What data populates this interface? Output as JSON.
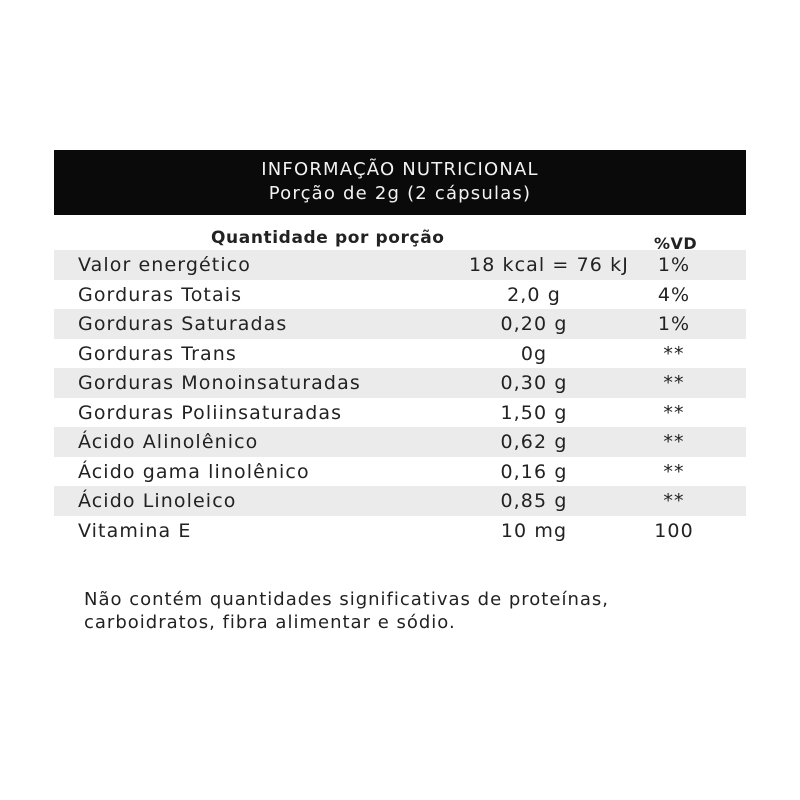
{
  "header": {
    "title": "INFORMAÇÃO NUTRICIONAL",
    "subtitle": "Porção de 2g (2 cápsulas)"
  },
  "columns": {
    "quantity": "Quantidade por porção",
    "dv": "%VD"
  },
  "rows": [
    {
      "name": "Valor energético",
      "amount": "18 kcal = 76 kJ",
      "dv": "1%"
    },
    {
      "name": "Gorduras Totais",
      "amount": "2,0 g",
      "dv": "4%"
    },
    {
      "name": "Gorduras Saturadas",
      "amount": "0,20 g",
      "dv": "1%"
    },
    {
      "name": "Gorduras Trans",
      "amount": "0g",
      "dv": "**"
    },
    {
      "name": "Gorduras Monoinsaturadas",
      "amount": "0,30 g",
      "dv": "**"
    },
    {
      "name": "Gorduras Poliinsaturadas",
      "amount": "1,50 g",
      "dv": "**"
    },
    {
      "name": "Ácido Alinolênico",
      "amount": "0,62 g",
      "dv": "**"
    },
    {
      "name": "Ácido gama linolênico",
      "amount": "0,16 g",
      "dv": "**"
    },
    {
      "name": "Ácido Linoleico",
      "amount": "0,85 g",
      "dv": "**"
    },
    {
      "name": "Vitamina E",
      "amount": "10 mg",
      "dv": "100"
    }
  ],
  "footnote": {
    "line1": "Não contém quantidades significativas de proteínas,",
    "line2": "carboidratos, fibra alimentar e sódio."
  },
  "colors": {
    "header_bg": "#0a0a0a",
    "header_text": "#f2f2f2",
    "row_shade": "#ebebeb",
    "text": "#222222"
  }
}
